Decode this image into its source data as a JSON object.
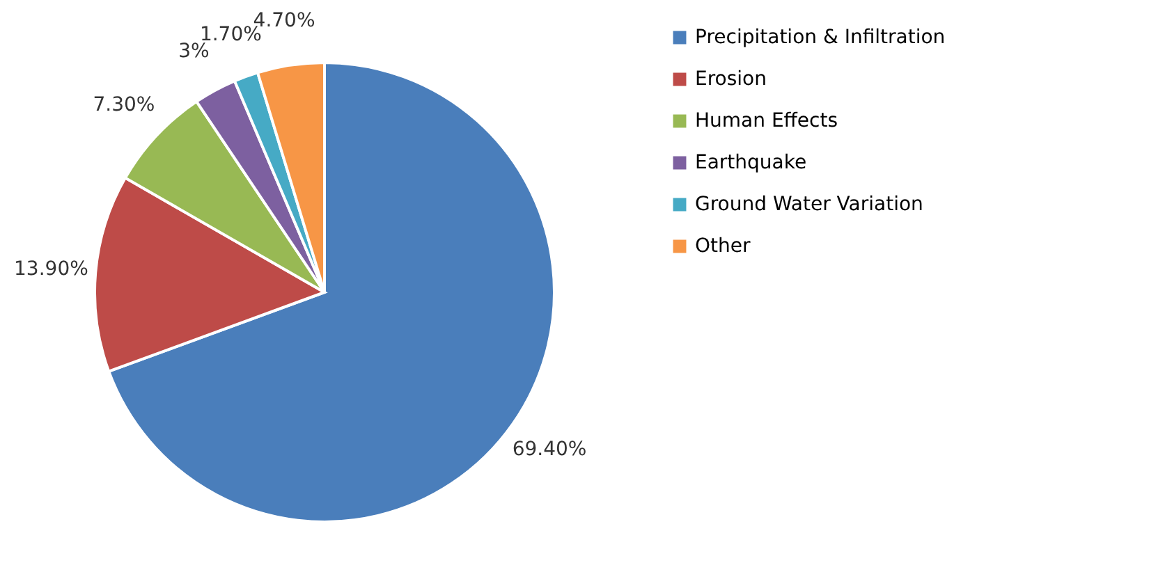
{
  "chart_data": {
    "type": "pie",
    "categories": [
      "Precipitation & Infiltration",
      "Erosion",
      "Human Effects",
      "Earthquake",
      "Ground Water Variation",
      "Other"
    ],
    "values": [
      69.4,
      13.9,
      7.3,
      3,
      1.7,
      4.7
    ],
    "colors": [
      "#4a7ebb",
      "#be4b48",
      "#98b954",
      "#7d60a0",
      "#46aac5",
      "#f79646"
    ],
    "value_labels": [
      "69.40%",
      "13.90%",
      "7.30%",
      "3%",
      "1.70%",
      "4.70%"
    ],
    "legend": "right"
  }
}
